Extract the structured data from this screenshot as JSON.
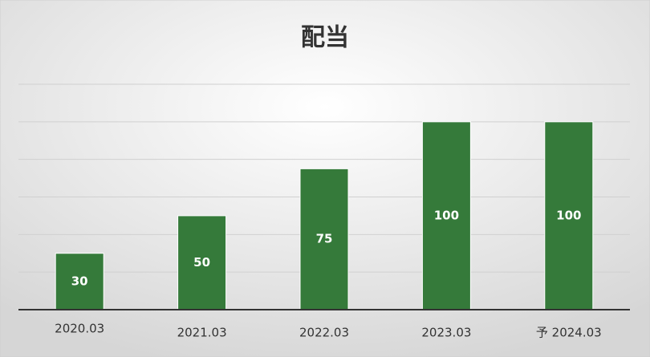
{
  "chart_data": {
    "type": "bar",
    "title": "配当",
    "categories": [
      "2020.03",
      "2021.03",
      "2022.03",
      "2023.03",
      "予 2024.03"
    ],
    "values": [
      30,
      50,
      75,
      100,
      100
    ],
    "color": "#357a3a",
    "ylim": [
      0,
      120
    ],
    "yticks": [
      0,
      20,
      40,
      60,
      80,
      100,
      120
    ],
    "grid": true
  }
}
